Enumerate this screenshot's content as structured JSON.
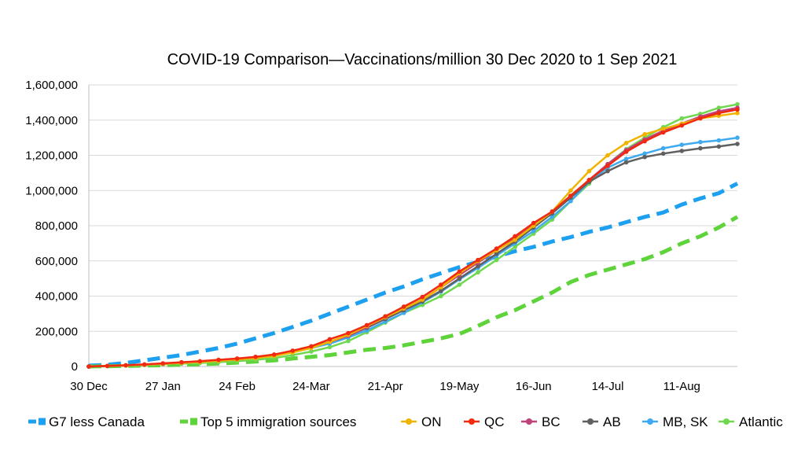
{
  "chart_data": {
    "type": "line",
    "title": "COVID-19 Comparison—Vaccinations/million 30 Dec 2020 to 1 Sep 2021",
    "xlabel": "",
    "ylabel": "",
    "ylim": [
      0,
      1600000
    ],
    "yticks": [
      0,
      200000,
      400000,
      600000,
      800000,
      1000000,
      1200000,
      1400000,
      1600000
    ],
    "ytick_labels": [
      "0",
      "200,000",
      "400,000",
      "600,000",
      "800,000",
      "1,000,000",
      "1,200,000",
      "1,400,000",
      "1,600,000"
    ],
    "x_start": "30 Dec 2020",
    "x_end": "1 Sep 2021",
    "x_tick_labels": [
      "30 Dec",
      "27 Jan",
      "24 Feb",
      "24-Mar",
      "21-Apr",
      "19-May",
      "16-Jun",
      "14-Jul",
      "11-Aug"
    ],
    "x_dates": [
      "30 Dec",
      "6 Jan",
      "13 Jan",
      "20 Jan",
      "27 Jan",
      "3 Feb",
      "10 Feb",
      "17 Feb",
      "24 Feb",
      "3 Mar",
      "10 Mar",
      "17 Mar",
      "24 Mar",
      "31 Mar",
      "7 Apr",
      "14 Apr",
      "21 Apr",
      "28 Apr",
      "5 May",
      "12 May",
      "19 May",
      "26 May",
      "2 Jun",
      "9 Jun",
      "16 Jun",
      "23 Jun",
      "30 Jun",
      "7 Jul",
      "14 Jul",
      "21 Jul",
      "28 Jul",
      "4 Aug",
      "11 Aug",
      "18 Aug",
      "25 Aug",
      "1 Sep"
    ],
    "grid": "horizontal",
    "legend_position": "bottom",
    "series": [
      {
        "name": "G7 less Canada",
        "color": "#1ea0f0",
        "style": "dashed-thick",
        "values": [
          5000,
          10000,
          20000,
          35000,
          50000,
          65000,
          85000,
          105000,
          130000,
          160000,
          190000,
          225000,
          260000,
          300000,
          340000,
          380000,
          420000,
          455000,
          495000,
          530000,
          565000,
          595000,
          625000,
          655000,
          680000,
          710000,
          735000,
          765000,
          790000,
          820000,
          850000,
          875000,
          920000,
          955000,
          985000,
          1040000
        ]
      },
      {
        "name": "Top 5 immigration sources",
        "color": "#5ed33a",
        "style": "dashed-thick",
        "values": [
          0,
          2000,
          3000,
          5000,
          7000,
          10000,
          13000,
          17000,
          22000,
          28000,
          35000,
          45000,
          55000,
          65000,
          80000,
          95000,
          105000,
          120000,
          140000,
          160000,
          185000,
          230000,
          280000,
          320000,
          370000,
          420000,
          480000,
          520000,
          550000,
          580000,
          610000,
          650000,
          700000,
          740000,
          790000,
          850000
        ]
      },
      {
        "name": "ON",
        "color": "#f0b400",
        "style": "solid-markers",
        "values": [
          0,
          3000,
          6000,
          10000,
          15000,
          20000,
          25000,
          32000,
          40000,
          48000,
          60000,
          80000,
          105000,
          140000,
          180000,
          230000,
          280000,
          330000,
          380000,
          450000,
          530000,
          600000,
          660000,
          720000,
          800000,
          880000,
          1000000,
          1110000,
          1200000,
          1270000,
          1320000,
          1350000,
          1380000,
          1410000,
          1425000,
          1440000
        ]
      },
      {
        "name": "QC",
        "color": "#f02a10",
        "style": "solid-markers",
        "values": [
          0,
          3000,
          7000,
          12000,
          18000,
          24000,
          30000,
          38000,
          45000,
          55000,
          68000,
          90000,
          115000,
          155000,
          190000,
          235000,
          285000,
          340000,
          395000,
          465000,
          540000,
          605000,
          670000,
          740000,
          815000,
          880000,
          970000,
          1060000,
          1140000,
          1220000,
          1280000,
          1330000,
          1370000,
          1410000,
          1440000,
          1460000
        ]
      },
      {
        "name": "BC",
        "color": "#c0407a",
        "style": "solid-markers",
        "values": [
          0,
          3000,
          6000,
          10000,
          15000,
          20000,
          26000,
          33000,
          40000,
          50000,
          63000,
          83000,
          108000,
          140000,
          175000,
          225000,
          280000,
          330000,
          380000,
          450000,
          520000,
          590000,
          660000,
          730000,
          805000,
          880000,
          970000,
          1060000,
          1150000,
          1230000,
          1290000,
          1340000,
          1380000,
          1420000,
          1450000,
          1470000
        ]
      },
      {
        "name": "AB",
        "color": "#606060",
        "style": "solid-markers",
        "values": [
          0,
          3000,
          6000,
          10000,
          15000,
          20000,
          26000,
          33000,
          40000,
          50000,
          63000,
          85000,
          110000,
          140000,
          175000,
          220000,
          270000,
          320000,
          370000,
          430000,
          500000,
          570000,
          640000,
          710000,
          790000,
          870000,
          960000,
          1050000,
          1110000,
          1160000,
          1190000,
          1210000,
          1225000,
          1240000,
          1250000,
          1265000
        ]
      },
      {
        "name": "MB, SK",
        "color": "#40aaf0",
        "style": "solid-markers",
        "values": [
          0,
          3000,
          6000,
          10000,
          15000,
          20000,
          26000,
          33000,
          42000,
          52000,
          65000,
          82000,
          105000,
          130000,
          165000,
          205000,
          255000,
          305000,
          365000,
          425000,
          495000,
          560000,
          630000,
          700000,
          770000,
          850000,
          940000,
          1050000,
          1130000,
          1180000,
          1210000,
          1240000,
          1260000,
          1275000,
          1285000,
          1300000
        ]
      },
      {
        "name": "Atlantic",
        "color": "#70d850",
        "style": "solid-markers",
        "values": [
          0,
          2000,
          5000,
          8000,
          12000,
          16000,
          20000,
          25000,
          30000,
          38000,
          48000,
          65000,
          85000,
          110000,
          145000,
          195000,
          250000,
          305000,
          350000,
          400000,
          465000,
          535000,
          605000,
          680000,
          755000,
          835000,
          940000,
          1040000,
          1150000,
          1235000,
          1300000,
          1360000,
          1410000,
          1435000,
          1470000,
          1490000
        ]
      }
    ]
  }
}
